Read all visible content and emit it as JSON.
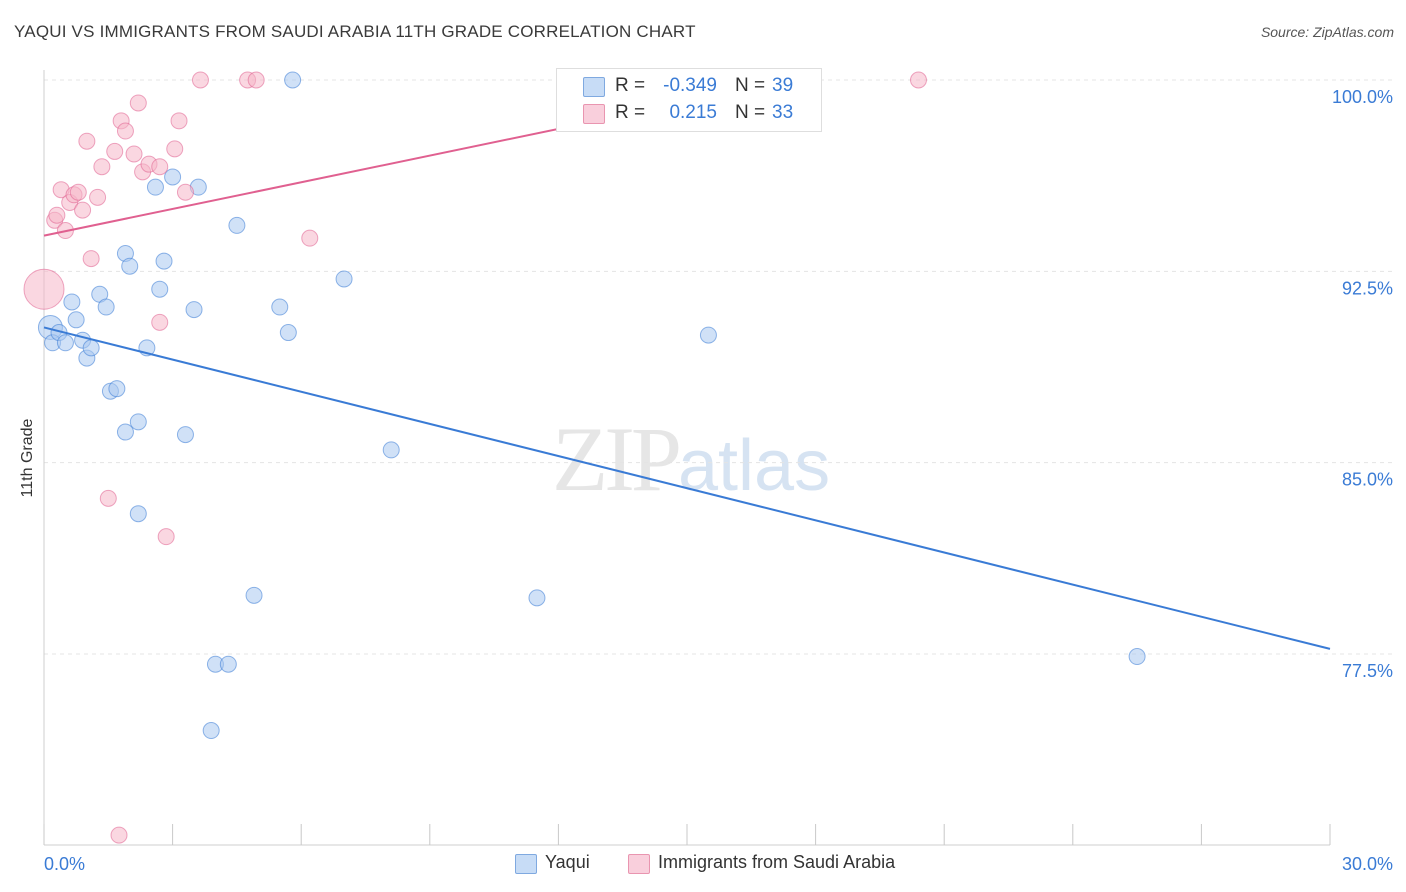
{
  "title": "YAQUI VS IMMIGRANTS FROM SAUDI ARABIA 11TH GRADE CORRELATION CHART",
  "source": "Source: ZipAtlas.com",
  "watermark": {
    "zip": "ZIP",
    "atlas": "atlas"
  },
  "legend": {
    "rows": [
      {
        "r_label": "R =",
        "r_value": "-0.349",
        "n_label": "N =",
        "n_value": "39",
        "color": "#a9c8f0"
      },
      {
        "r_label": "R =",
        "r_value": "0.215",
        "n_label": "N =",
        "n_value": "33",
        "color": "#f5b6c8"
      }
    ]
  },
  "bottom_legend": [
    {
      "label": "Yaqui",
      "color": "#a9c8f0"
    },
    {
      "label": "Immigrants from Saudi Arabia",
      "color": "#f5b6c8"
    }
  ],
  "chart_data": {
    "type": "scatter",
    "title": "YAQUI VS IMMIGRANTS FROM SAUDI ARABIA 11TH GRADE CORRELATION CHART",
    "xlabel": "",
    "ylabel": "11th Grade",
    "xlim": [
      0.0,
      30.0
    ],
    "ylim": [
      70.0,
      100.8
    ],
    "x_tick_labels": [
      "0.0%",
      "30.0%"
    ],
    "x_ticks": [
      0,
      3,
      6,
      9,
      12,
      15,
      18,
      21,
      24,
      27,
      30
    ],
    "y_ticks": [
      77.5,
      85.0,
      92.5,
      100.0
    ],
    "y_tick_labels": [
      "77.5%",
      "85.0%",
      "92.5%",
      "100.0%"
    ],
    "grid": true,
    "legend_position": "top-center",
    "series": [
      {
        "name": "Yaqui",
        "color": "#3a7bd5",
        "fill": "#a9c8f0",
        "trend": {
          "x": [
            0.0,
            30.0
          ],
          "y": [
            90.3,
            77.7
          ]
        },
        "points": [
          [
            0.15,
            90.3
          ],
          [
            0.2,
            89.7
          ],
          [
            0.35,
            90.1
          ],
          [
            0.5,
            89.7
          ],
          [
            0.65,
            91.3
          ],
          [
            0.75,
            90.6
          ],
          [
            0.9,
            89.8
          ],
          [
            1.0,
            89.1
          ],
          [
            1.1,
            89.5
          ],
          [
            1.3,
            91.6
          ],
          [
            1.45,
            91.1
          ],
          [
            1.55,
            87.8
          ],
          [
            1.7,
            87.9
          ],
          [
            1.9,
            93.2
          ],
          [
            1.9,
            86.2
          ],
          [
            2.0,
            92.7
          ],
          [
            2.2,
            86.6
          ],
          [
            2.2,
            83.0
          ],
          [
            2.4,
            89.5
          ],
          [
            2.6,
            95.8
          ],
          [
            2.7,
            91.8
          ],
          [
            2.8,
            92.9
          ],
          [
            3.0,
            96.2
          ],
          [
            3.3,
            86.1
          ],
          [
            3.5,
            91.0
          ],
          [
            3.6,
            95.8
          ],
          [
            3.9,
            74.5
          ],
          [
            4.0,
            77.1
          ],
          [
            4.3,
            77.1
          ],
          [
            4.5,
            94.3
          ],
          [
            4.9,
            79.8
          ],
          [
            5.5,
            91.1
          ],
          [
            5.7,
            90.1
          ],
          [
            5.8,
            100.0
          ],
          [
            7.0,
            92.2
          ],
          [
            8.1,
            85.5
          ],
          [
            11.5,
            79.7
          ],
          [
            15.5,
            90.0
          ],
          [
            25.5,
            77.4
          ]
        ]
      },
      {
        "name": "Immigrants from Saudi Arabia",
        "color": "#e06090",
        "fill": "#f5b6c8",
        "trend": {
          "x": [
            0.0,
            17.5
          ],
          "y": [
            93.9,
            100.0
          ]
        },
        "points": [
          [
            0.0,
            91.8
          ],
          [
            0.25,
            94.5
          ],
          [
            0.3,
            94.7
          ],
          [
            0.4,
            95.7
          ],
          [
            0.5,
            94.1
          ],
          [
            0.6,
            95.2
          ],
          [
            0.7,
            95.5
          ],
          [
            0.8,
            95.6
          ],
          [
            0.9,
            94.9
          ],
          [
            1.0,
            97.6
          ],
          [
            1.1,
            93.0
          ],
          [
            1.25,
            95.4
          ],
          [
            1.35,
            96.6
          ],
          [
            1.5,
            83.6
          ],
          [
            1.65,
            97.2
          ],
          [
            1.75,
            70.4
          ],
          [
            1.8,
            98.4
          ],
          [
            1.9,
            98.0
          ],
          [
            2.1,
            97.1
          ],
          [
            2.2,
            99.1
          ],
          [
            2.3,
            96.4
          ],
          [
            2.45,
            96.7
          ],
          [
            2.7,
            96.6
          ],
          [
            2.7,
            90.5
          ],
          [
            2.85,
            82.1
          ],
          [
            3.05,
            97.3
          ],
          [
            3.15,
            98.4
          ],
          [
            3.3,
            95.6
          ],
          [
            3.65,
            100.0
          ],
          [
            4.75,
            100.0
          ],
          [
            4.95,
            100.0
          ],
          [
            6.2,
            93.8
          ],
          [
            20.4,
            100.0
          ]
        ]
      }
    ]
  }
}
